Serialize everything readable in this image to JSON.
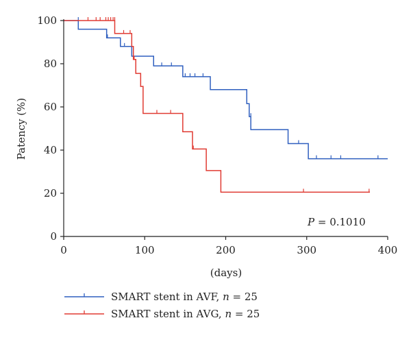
{
  "chart_data": {
    "type": "line",
    "subtype": "kaplan-meier",
    "xlabel": "(days)",
    "ylabel": "Patency (%)",
    "xlim": [
      0,
      400
    ],
    "ylim": [
      0,
      100
    ],
    "xticks": [
      0,
      100,
      200,
      300,
      400
    ],
    "yticks": [
      0,
      20,
      40,
      60,
      80,
      100
    ],
    "grid": false,
    "legend_position": "bottom",
    "annotation": {
      "label": "P",
      "text": " = 0.1010"
    },
    "series": [
      {
        "name": "SMART stent in AVF, n = 25",
        "legend_prefix": "SMART stent in AVF, ",
        "legend_n": "n",
        "legend_suffix": " = 25",
        "color": "#2f5fbf",
        "steps": [
          [
            0,
            100
          ],
          [
            18,
            96
          ],
          [
            53,
            92
          ],
          [
            70,
            88
          ],
          [
            84,
            83.5
          ],
          [
            111,
            79
          ],
          [
            147,
            74
          ],
          [
            181,
            68
          ],
          [
            226,
            61.5
          ],
          [
            229,
            55.5
          ],
          [
            231,
            49.5
          ],
          [
            277,
            43
          ],
          [
            302,
            36
          ],
          [
            400,
            36
          ]
        ],
        "censored": [
          [
            18,
            100
          ],
          [
            54,
            92
          ],
          [
            75,
            88
          ],
          [
            121,
            79
          ],
          [
            133,
            79
          ],
          [
            150,
            74
          ],
          [
            156,
            74
          ],
          [
            162,
            74
          ],
          [
            172,
            74
          ],
          [
            231,
            55.5
          ],
          [
            290,
            43
          ],
          [
            312,
            36
          ],
          [
            330,
            36
          ],
          [
            342,
            36
          ],
          [
            388,
            36
          ]
        ]
      },
      {
        "name": "SMART stent in AVG, n = 25",
        "legend_prefix": "SMART stent in AVG, ",
        "legend_n": "n",
        "legend_suffix": " = 25",
        "color": "#e03a32",
        "steps": [
          [
            0,
            100
          ],
          [
            63,
            94
          ],
          [
            84,
            88
          ],
          [
            86,
            82
          ],
          [
            89,
            75.5
          ],
          [
            95,
            69.5
          ],
          [
            98,
            57
          ],
          [
            147,
            48.5
          ],
          [
            159,
            40.5
          ],
          [
            176,
            30.5
          ],
          [
            194,
            20.5
          ],
          [
            378,
            20.5
          ]
        ],
        "censored": [
          [
            30,
            100
          ],
          [
            40,
            100
          ],
          [
            45,
            100
          ],
          [
            52,
            100
          ],
          [
            55,
            100
          ],
          [
            58,
            100
          ],
          [
            61,
            100
          ],
          [
            63,
            100
          ],
          [
            74,
            94
          ],
          [
            82,
            94
          ],
          [
            87,
            82
          ],
          [
            115,
            57
          ],
          [
            132,
            57
          ],
          [
            160,
            40.5
          ],
          [
            296,
            20.5
          ],
          [
            377,
            20.5
          ]
        ]
      }
    ]
  }
}
